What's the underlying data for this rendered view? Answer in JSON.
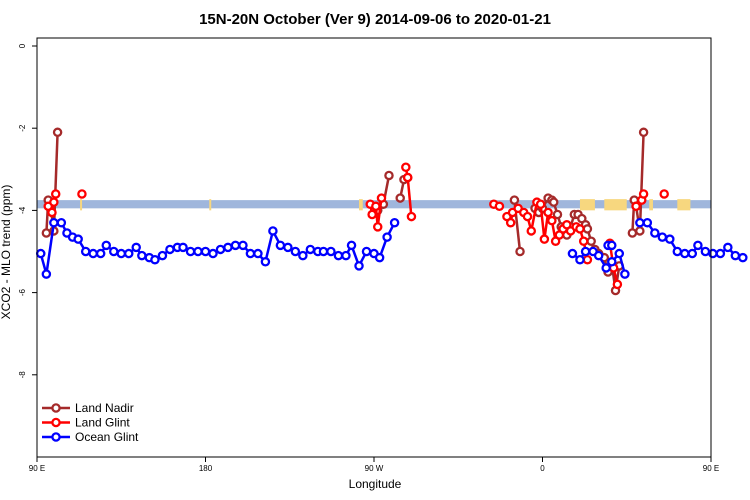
{
  "chart_data": {
    "type": "line",
    "title": "15N-20N October (Ver 9)   2014-09-06 to 2020-01-21",
    "xlabel": "Longitude",
    "ylabel": "XCO2 - MLO trend (ppm)",
    "xlim": [
      90,
      450
    ],
    "ylim": [
      -10,
      0
    ],
    "x_ticks": [
      {
        "value": 90,
        "label": "90 E"
      },
      {
        "value": 180,
        "label": "180"
      },
      {
        "value": 270,
        "label": "90 W"
      },
      {
        "value": 360,
        "label": "0"
      },
      {
        "value": 450,
        "label": "90 E"
      },
      {
        "value": 540,
        "label": "180"
      }
    ],
    "y_ticks": [
      {
        "value": 0,
        "label": "0"
      },
      {
        "value": -2,
        "label": "-2"
      },
      {
        "value": -4,
        "label": "-4"
      },
      {
        "value": -6,
        "label": "-6"
      },
      {
        "value": -8,
        "label": "-8"
      }
    ],
    "legend_position": "bottom-left",
    "land_band": {
      "y_top": -3.75,
      "y_bottom": -3.95,
      "ocean_color": "#9fb6dc",
      "land_color": "#f7d77f",
      "land_segments": [
        [
          113,
          114
        ],
        [
          182,
          183
        ],
        [
          262,
          264
        ],
        [
          380,
          388
        ],
        [
          393,
          405
        ],
        [
          417,
          419
        ],
        [
          432,
          439
        ],
        [
          476,
          478
        ]
      ]
    },
    "series": [
      {
        "name": "Land Nadir",
        "color": "#a52a2a",
        "segments": [
          [
            [
              95,
              -4.55
            ],
            [
              96,
              -3.75
            ],
            [
              97.5,
              -4.0
            ],
            [
              99,
              -4.5
            ],
            [
              101,
              -2.1
            ]
          ],
          [
            [
              272,
              -4.0
            ],
            [
              275,
              -3.85
            ],
            [
              278,
              -3.15
            ]
          ],
          [
            [
              284,
              -3.7
            ],
            [
              286,
              -3.25
            ],
            [
              288,
              -3.2
            ]
          ],
          [
            [
              345,
              -3.75
            ],
            [
              348,
              -5.0
            ]
          ],
          [
            [
              356,
              -3.95
            ],
            [
              358,
              -4.05
            ],
            [
              360,
              -3.95
            ],
            [
              363,
              -3.7
            ],
            [
              365,
              -3.75
            ],
            [
              366,
              -3.8
            ],
            [
              368,
              -4.1
            ],
            [
              370,
              -4.4
            ],
            [
              373,
              -4.6
            ],
            [
              375,
              -4.4
            ],
            [
              377,
              -4.1
            ],
            [
              379,
              -4.1
            ],
            [
              381,
              -4.2
            ],
            [
              383,
              -4.35
            ],
            [
              384,
              -4.45
            ],
            [
              386,
              -4.75
            ],
            [
              388,
              -4.95
            ],
            [
              390,
              -5.05
            ],
            [
              393,
              -5.15
            ],
            [
              395,
              -5.5
            ],
            [
              397,
              -5.3
            ],
            [
              399,
              -5.95
            ],
            [
              401,
              -5.35
            ]
          ],
          [
            [
              408,
              -4.55
            ],
            [
              409,
              -3.75
            ],
            [
              410,
              -3.9
            ],
            [
              412,
              -4.5
            ],
            [
              414,
              -2.1
            ]
          ]
        ]
      },
      {
        "name": "Land Glint",
        "color": "#ff0000",
        "segments": [
          [
            [
              96,
              -3.9
            ],
            [
              98,
              -4.05
            ],
            [
              99,
              -3.8
            ],
            [
              100,
              -3.6
            ]
          ],
          [
            [
              114,
              -3.6
            ]
          ],
          [
            [
              268,
              -3.85
            ],
            [
              269,
              -4.1
            ],
            [
              271,
              -3.9
            ],
            [
              272,
              -4.4
            ],
            [
              274,
              -3.7
            ]
          ],
          [
            [
              287,
              -2.95
            ],
            [
              288,
              -3.2
            ],
            [
              290,
              -4.15
            ]
          ],
          [
            [
              334,
              -3.85
            ],
            [
              337,
              -3.9
            ]
          ],
          [
            [
              341,
              -4.15
            ],
            [
              343,
              -4.3
            ],
            [
              344,
              -4.05
            ],
            [
              347,
              -3.95
            ]
          ],
          [
            [
              350,
              -4.05
            ],
            [
              352,
              -4.15
            ],
            [
              354,
              -4.5
            ],
            [
              357,
              -3.8
            ],
            [
              359,
              -3.85
            ],
            [
              361,
              -4.7
            ],
            [
              363,
              -4.05
            ],
            [
              365,
              -4.25
            ],
            [
              367,
              -4.75
            ],
            [
              369,
              -4.6
            ],
            [
              371,
              -4.45
            ],
            [
              373,
              -4.35
            ],
            [
              375,
              -4.5
            ],
            [
              378,
              -4.4
            ],
            [
              380,
              -4.45
            ],
            [
              382,
              -4.75
            ],
            [
              384,
              -5.2
            ]
          ],
          [
            [
              396,
              -4.8
            ],
            [
              398,
              -5.4
            ],
            [
              400,
              -5.8
            ]
          ],
          [
            [
              410,
              -3.9
            ],
            [
              413,
              -3.75
            ],
            [
              414,
              -3.6
            ]
          ],
          [
            [
              425,
              -3.6
            ]
          ]
        ]
      },
      {
        "name": "Ocean Glint",
        "color": "#0000ff",
        "segments": [
          [
            [
              92,
              -5.05
            ],
            [
              95,
              -5.55
            ],
            [
              99,
              -4.3
            ],
            [
              103,
              -4.3
            ],
            [
              106,
              -4.55
            ],
            [
              109,
              -4.65
            ],
            [
              112,
              -4.7
            ],
            [
              116,
              -5.0
            ],
            [
              120,
              -5.05
            ],
            [
              124,
              -5.05
            ],
            [
              127,
              -4.85
            ],
            [
              131,
              -5.0
            ],
            [
              135,
              -5.05
            ],
            [
              139,
              -5.05
            ],
            [
              143,
              -4.9
            ],
            [
              146,
              -5.1
            ],
            [
              150,
              -5.15
            ],
            [
              153,
              -5.2
            ],
            [
              157,
              -5.1
            ],
            [
              161,
              -4.95
            ],
            [
              165,
              -4.9
            ],
            [
              168,
              -4.9
            ],
            [
              172,
              -5.0
            ],
            [
              176,
              -5.0
            ],
            [
              180,
              -5.0
            ],
            [
              184,
              -5.05
            ],
            [
              188,
              -4.95
            ],
            [
              192,
              -4.9
            ],
            [
              196,
              -4.85
            ],
            [
              200,
              -4.85
            ],
            [
              204,
              -5.05
            ],
            [
              208,
              -5.05
            ],
            [
              212,
              -5.25
            ],
            [
              216,
              -4.5
            ],
            [
              220,
              -4.85
            ],
            [
              224,
              -4.9
            ],
            [
              228,
              -5.0
            ],
            [
              232,
              -5.1
            ],
            [
              236,
              -4.95
            ],
            [
              240,
              -5.0
            ],
            [
              243,
              -5.0
            ],
            [
              247,
              -5.0
            ],
            [
              251,
              -5.1
            ],
            [
              255,
              -5.1
            ],
            [
              258,
              -4.85
            ],
            [
              262,
              -5.35
            ],
            [
              266,
              -5.0
            ],
            [
              270,
              -5.05
            ],
            [
              273,
              -5.15
            ],
            [
              277,
              -4.65
            ],
            [
              281,
              -4.3
            ]
          ],
          [
            [
              395,
              -4.85
            ],
            [
              397,
              -4.85
            ]
          ],
          [
            [
              376,
              -5.05
            ],
            [
              380,
              -5.2
            ],
            [
              383,
              -5.0
            ],
            [
              387,
              -5.0
            ],
            [
              390,
              -5.1
            ],
            [
              394,
              -5.4
            ],
            [
              397,
              -5.25
            ],
            [
              401,
              -5.05
            ],
            [
              404,
              -5.55
            ]
          ],
          [
            [
              412,
              -4.3
            ],
            [
              416,
              -4.3
            ],
            [
              420,
              -4.55
            ],
            [
              424,
              -4.65
            ],
            [
              428,
              -4.7
            ],
            [
              432,
              -5.0
            ],
            [
              436,
              -5.05
            ],
            [
              440,
              -5.05
            ],
            [
              443,
              -4.85
            ],
            [
              447,
              -5.0
            ],
            [
              451,
              -5.05
            ],
            [
              455,
              -5.05
            ],
            [
              459,
              -4.9
            ],
            [
              463,
              -5.1
            ],
            [
              467,
              -5.15
            ]
          ]
        ]
      }
    ]
  }
}
